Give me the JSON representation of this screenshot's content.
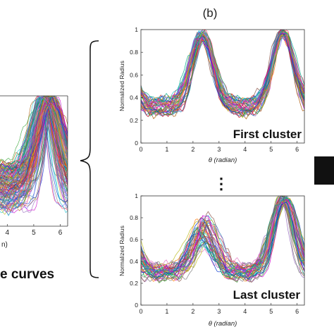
{
  "panel_label": "(b)",
  "left_caption": "e curves",
  "ellipsis": "⋮",
  "colors": {
    "palette": [
      "#1f77b4",
      "#d62728",
      "#2ca02c",
      "#9467bd",
      "#ff7f0e",
      "#17becf",
      "#e377c2",
      "#8c564b",
      "#bcbd22",
      "#7f7f7f",
      "#0033cc",
      "#cc00cc",
      "#00aa88",
      "#aa5500",
      "#6666ff",
      "#ff3366"
    ],
    "arrow": "#111111"
  },
  "chart_data": [
    {
      "id": "left-partial",
      "type": "line",
      "title": "",
      "xlabel": "n)",
      "ylabel": "",
      "x_ticks": [
        "4",
        "5",
        "6"
      ],
      "x_tick_values": [
        4,
        5,
        6
      ],
      "xlim": [
        3.1,
        6.3
      ],
      "ylim": [
        0,
        1
      ],
      "series_count": 140,
      "profile": {
        "peaks": [
          2.3,
          5.5
        ],
        "peak_height": 1.0,
        "trough_height": 0.3
      },
      "grid": false
    },
    {
      "id": "first-cluster",
      "type": "line",
      "title": "",
      "xlabel": "θ (radian)",
      "ylabel": "Normalized Radius",
      "annotation": "First cluster",
      "x_ticks": [
        "0",
        "1",
        "2",
        "3",
        "4",
        "5",
        "6"
      ],
      "x_tick_values": [
        0,
        1,
        2,
        3,
        4,
        5,
        6
      ],
      "y_ticks": [
        "0",
        "0.2",
        "0.4",
        "0.6",
        "0.8",
        "1"
      ],
      "y_tick_values": [
        0,
        0.2,
        0.4,
        0.6,
        0.8,
        1
      ],
      "xlim": [
        0,
        6.28
      ],
      "ylim": [
        0,
        1
      ],
      "series_count": 45,
      "profile": {
        "peaks": [
          2.35,
          5.45
        ],
        "peak_height": 0.98,
        "trough_height": 0.32
      },
      "grid": false
    },
    {
      "id": "last-cluster",
      "type": "line",
      "title": "",
      "xlabel": "θ (radian)",
      "ylabel": "Normalized Radius",
      "annotation": "Last cluster",
      "x_ticks": [
        "0",
        "1",
        "2",
        "3",
        "4",
        "5",
        "6"
      ],
      "x_tick_values": [
        0,
        1,
        2,
        3,
        4,
        5,
        6
      ],
      "y_ticks": [
        "0",
        "0.2",
        "0.4",
        "0.6",
        "0.8",
        "1"
      ],
      "y_tick_values": [
        0,
        0.2,
        0.4,
        0.6,
        0.8,
        1
      ],
      "xlim": [
        0,
        6.28
      ],
      "ylim": [
        0,
        1
      ],
      "series_count": 45,
      "profile": {
        "peaks": [
          2.4,
          5.5
        ],
        "peak_height": 0.82,
        "trough_height": 0.3
      },
      "grid": false
    }
  ]
}
